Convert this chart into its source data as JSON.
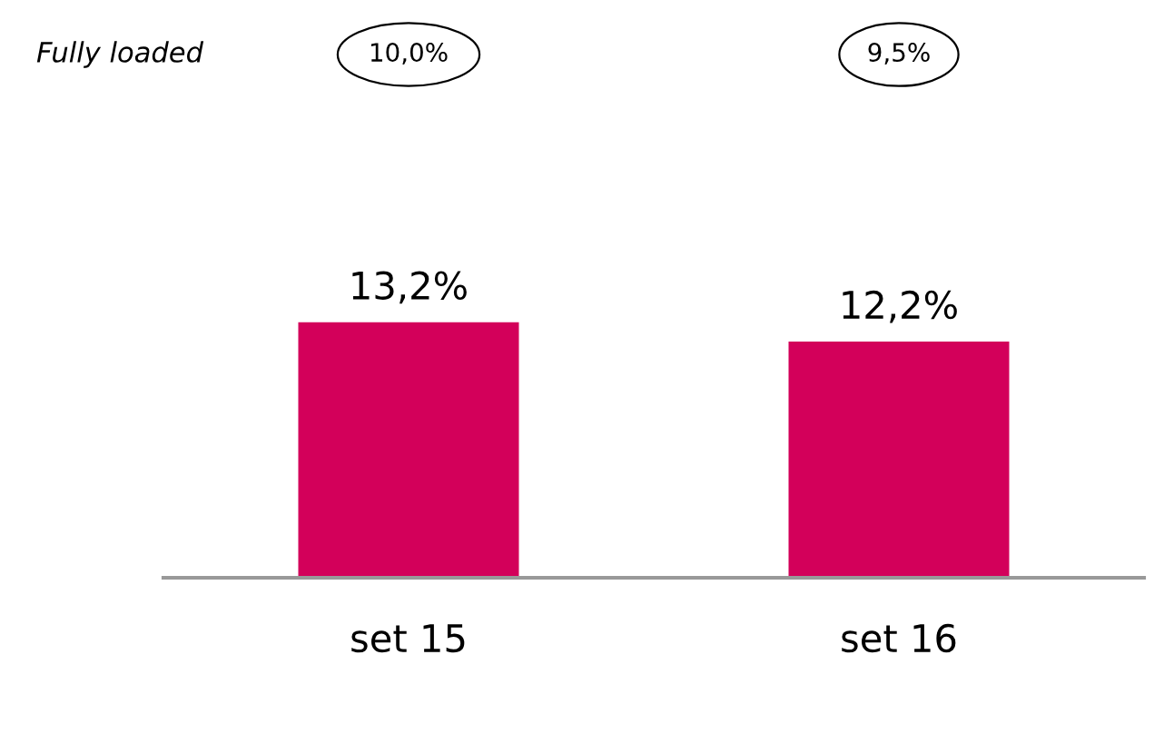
{
  "chart_data": {
    "type": "bar",
    "categories": [
      "set 15",
      "set 16"
    ],
    "values": [
      13.2,
      12.2
    ],
    "value_labels": [
      "13,2%",
      "12,2%"
    ],
    "color": "#d3005a",
    "annotations": [
      "Fully loaded",
      "10,0%",
      "9,5%"
    ],
    "grid": false,
    "legend": false
  }
}
